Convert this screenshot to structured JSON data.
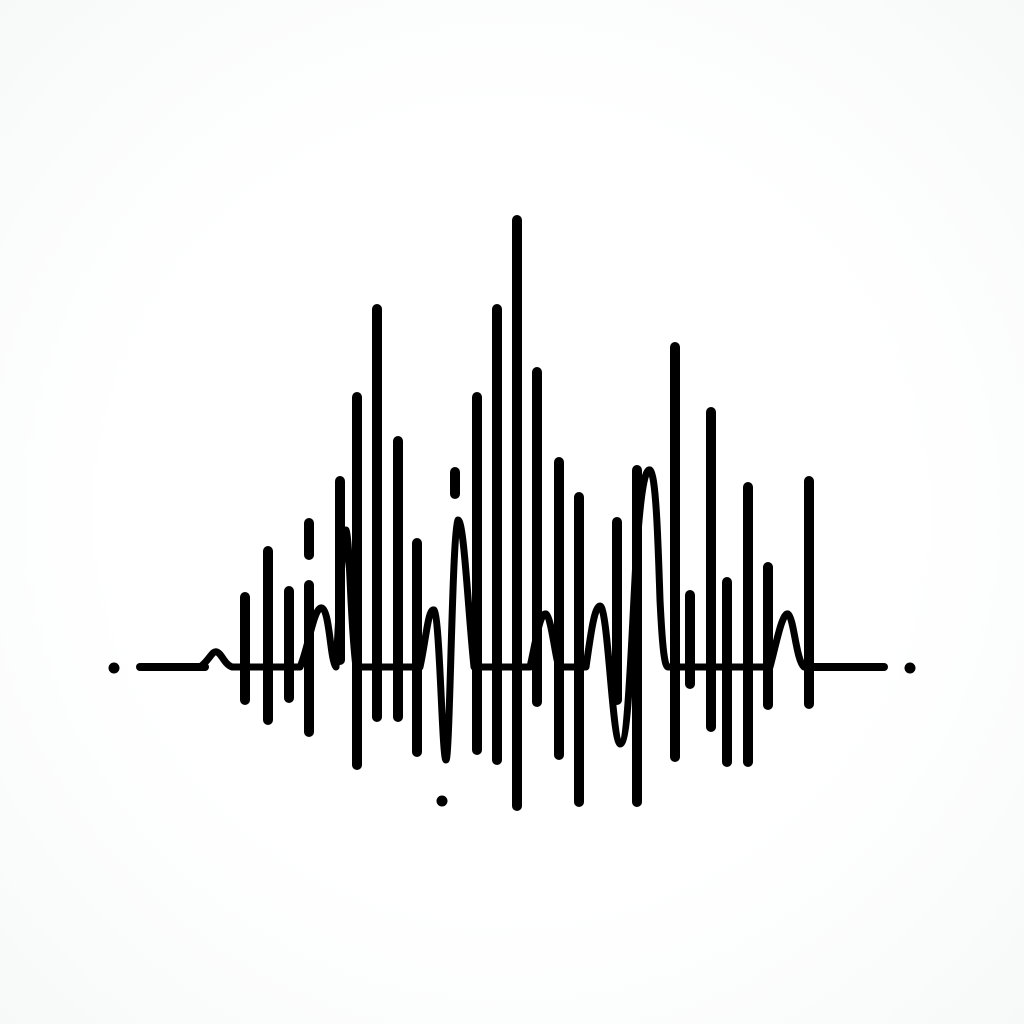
{
  "graphic": {
    "icon": "waveform-icon",
    "ink_color": "#000000",
    "background_color": "#ffffff"
  }
}
